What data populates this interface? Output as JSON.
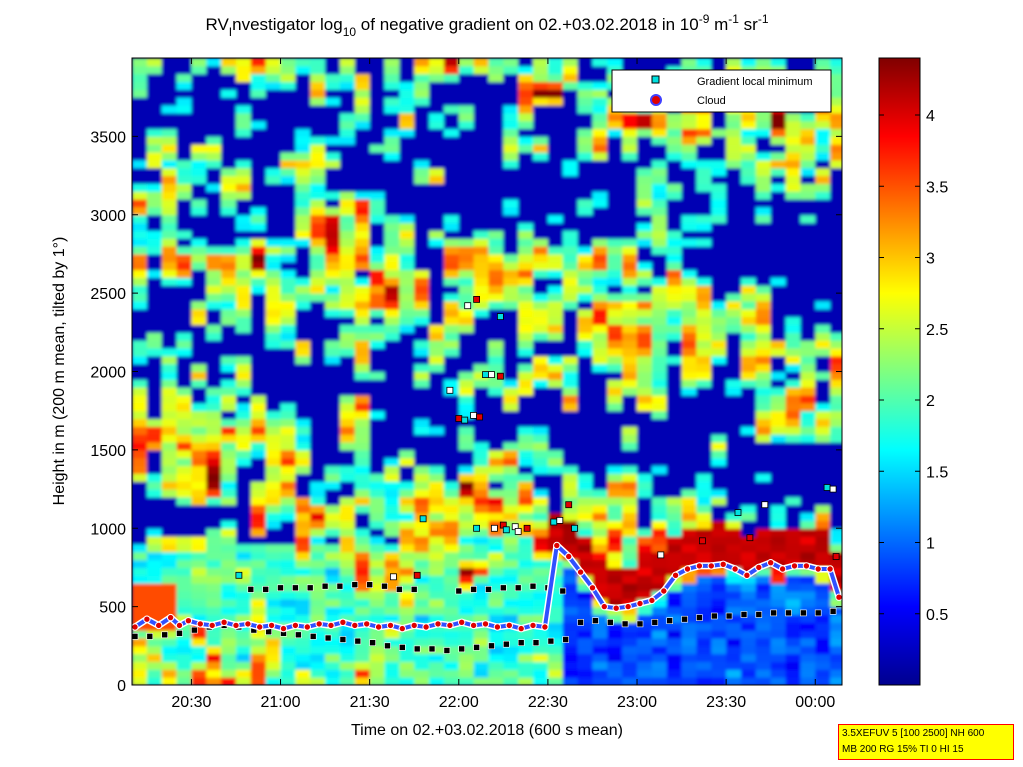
{
  "chart_data": {
    "type": "heatmap",
    "title_parts": {
      "prefix": "RV",
      "sub_i": "I",
      "mid": "nvestigator log",
      "sub_10": "10",
      "text": " of negative gradient on 02.+03.02.2018 in 10",
      "sup_1": "-9",
      "unit_m": " m",
      "sup_2": "-1",
      "unit_sr": " sr",
      "sup_3": "-1"
    },
    "xlabel": "Time on 02.+03.02.2018 (600 s mean)",
    "ylabel": "Height in m (200 m mean, tilted by 1°)",
    "x_ticks": [
      "20:30",
      "21:00",
      "21:30",
      "22:00",
      "22:30",
      "23:00",
      "23:30",
      "00:00"
    ],
    "x_tick_minutes": [
      1230,
      1260,
      1290,
      1320,
      1350,
      1380,
      1410,
      1440
    ],
    "xlim_minutes": [
      1210,
      1449
    ],
    "y_ticks": [
      0,
      500,
      1000,
      1500,
      2000,
      2500,
      3000,
      3500
    ],
    "ylim": [
      0,
      4000
    ],
    "colorbar": {
      "ticks": [
        0.5,
        1,
        1.5,
        2,
        2.5,
        3,
        3.5,
        4
      ],
      "tick_labels": [
        "0.5",
        "1",
        "1.5",
        "2",
        "2.5",
        "3",
        "3.5",
        "4"
      ],
      "range": [
        0,
        4.4
      ],
      "colormap": "jet"
    },
    "legend": {
      "position": "top-right",
      "entries": [
        {
          "label": "Gradient local minimum",
          "marker": "square",
          "color": "#00e0e0"
        },
        {
          "label": "Cloud",
          "marker": "circle",
          "color": "#e00000"
        }
      ]
    },
    "cloud_base_series": {
      "name": "Cloud",
      "x_minutes": [
        1211,
        1215,
        1219,
        1223,
        1226,
        1229,
        1233,
        1237,
        1241,
        1245,
        1249,
        1253,
        1257,
        1261,
        1265,
        1269,
        1273,
        1277,
        1281,
        1285,
        1289,
        1293,
        1297,
        1301,
        1305,
        1309,
        1313,
        1317,
        1321,
        1325,
        1329,
        1333,
        1337,
        1341,
        1345,
        1349,
        1353,
        1357,
        1361,
        1365,
        1369,
        1373,
        1377,
        1381,
        1385,
        1389,
        1393,
        1397,
        1401,
        1405,
        1409,
        1413,
        1417,
        1421,
        1425,
        1429,
        1433,
        1437,
        1441,
        1445,
        1448
      ],
      "y_values": [
        370,
        420,
        380,
        430,
        380,
        410,
        390,
        380,
        400,
        380,
        390,
        370,
        380,
        360,
        380,
        370,
        390,
        380,
        400,
        380,
        390,
        370,
        380,
        360,
        380,
        370,
        390,
        380,
        400,
        380,
        390,
        370,
        380,
        360,
        380,
        370,
        890,
        820,
        720,
        620,
        500,
        490,
        500,
        520,
        540,
        600,
        700,
        740,
        760,
        760,
        770,
        740,
        700,
        750,
        780,
        740,
        760,
        760,
        740,
        740,
        560
      ]
    },
    "gradient_minimum_series": {
      "name": "Gradient local minimum",
      "x_minutes": [
        1211,
        1216,
        1221,
        1226,
        1231,
        1236,
        1241,
        1246,
        1251,
        1256,
        1261,
        1266,
        1271,
        1276,
        1281,
        1286,
        1291,
        1296,
        1301,
        1306,
        1311,
        1316,
        1321,
        1326,
        1331,
        1336,
        1341,
        1346,
        1351,
        1356,
        1361,
        1366,
        1371,
        1376,
        1381,
        1386,
        1391,
        1396,
        1401,
        1406,
        1411,
        1416,
        1421,
        1426,
        1431,
        1436,
        1441,
        1446
      ],
      "y_values": [
        310,
        310,
        320,
        330,
        350,
        370,
        380,
        370,
        350,
        340,
        330,
        320,
        310,
        300,
        290,
        280,
        270,
        250,
        240,
        230,
        230,
        220,
        230,
        240,
        250,
        260,
        270,
        270,
        280,
        290,
        400,
        410,
        400,
        390,
        390,
        400,
        410,
        420,
        430,
        440,
        440,
        450,
        450,
        460,
        460,
        460,
        460,
        470
      ]
    },
    "upper_layer_series": {
      "name": "",
      "x_minutes": [
        1250,
        1255,
        1260,
        1265,
        1270,
        1275,
        1280,
        1285,
        1290,
        1295,
        1300,
        1305,
        1320,
        1325,
        1330,
        1335,
        1340,
        1345,
        1350,
        1355
      ],
      "y_values": [
        610,
        610,
        620,
        620,
        620,
        630,
        630,
        640,
        640,
        630,
        610,
        610,
        600,
        610,
        610,
        620,
        620,
        630,
        620,
        600
      ]
    },
    "scatter_points": {
      "x_minutes": [
        1317,
        1320,
        1322,
        1325,
        1327,
        1329,
        1331,
        1334,
        1308,
        1323,
        1326,
        1334,
        1332,
        1335,
        1326,
        1339,
        1343,
        1352,
        1354,
        1357,
        1359,
        1423,
        1418,
        1414,
        1388,
        1402,
        1444,
        1446,
        1447,
        1246,
        1298,
        1306,
        1336,
        1340
      ],
      "y_values": [
        1880,
        1700,
        1690,
        1720,
        1710,
        1980,
        1980,
        1970,
        1060,
        2420,
        2460,
        2350,
        1000,
        1020,
        1000,
        1010,
        1000,
        1040,
        1050,
        1150,
        1000,
        1150,
        940,
        1100,
        830,
        920,
        1260,
        1250,
        820,
        700,
        690,
        700,
        990,
        980
      ]
    }
  },
  "info_box": {
    "line1": "3.5XEFUV 5 [100 2500] NH 600",
    "line2": "MB 200 RG 15% TI 0 HI 15"
  },
  "colors": {
    "background": "#ffffff",
    "cloud_marker": "#e00000",
    "cloud_outline": "#ffffff",
    "gradient_marker": "#00e0e0",
    "info_box_fill": "#ffff00",
    "info_box_border": "#ff0000"
  }
}
